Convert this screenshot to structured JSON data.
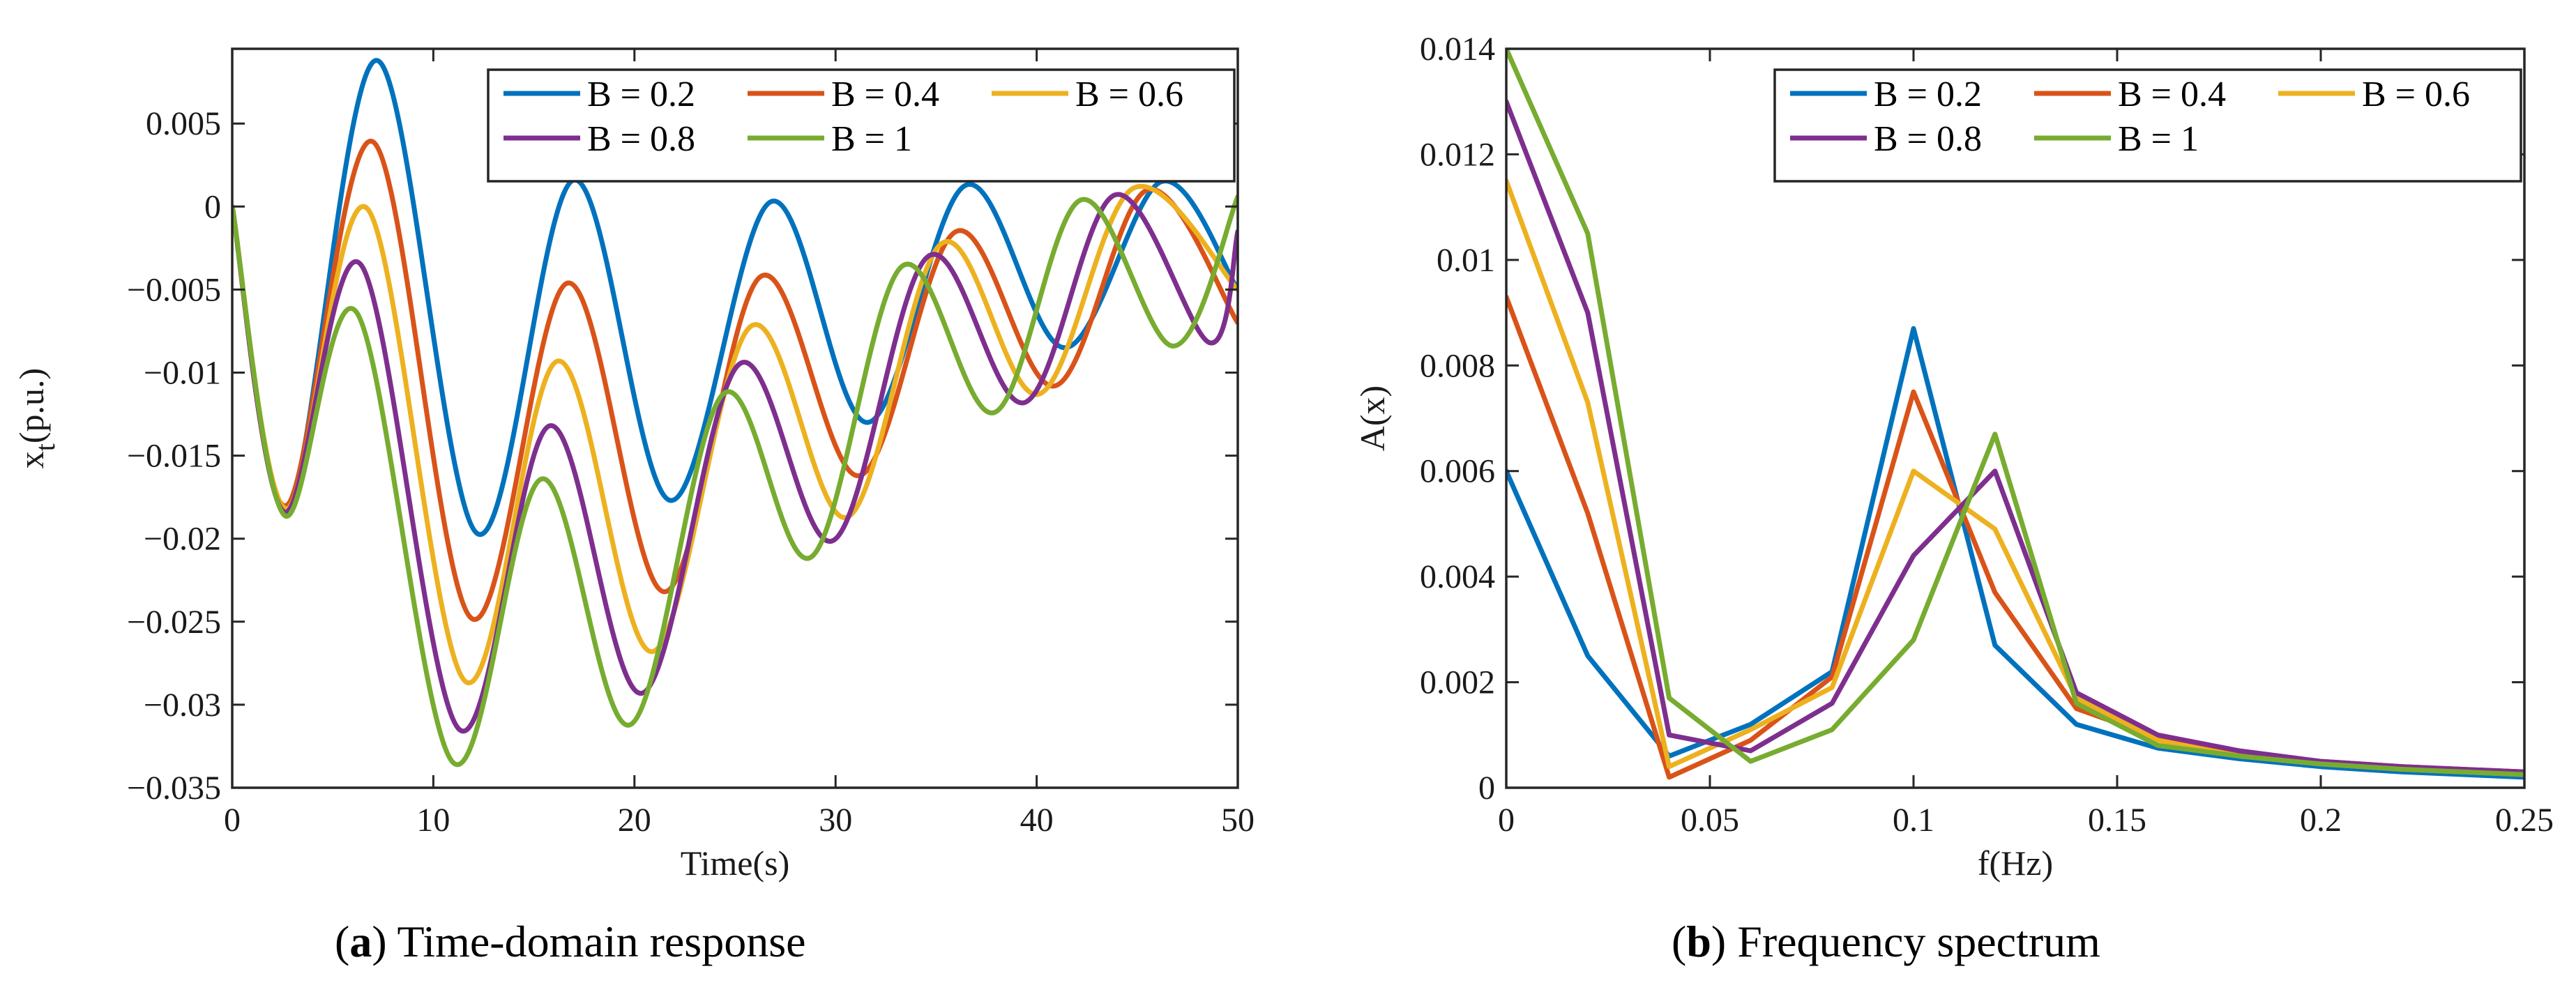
{
  "chart_data": [
    {
      "id": "a",
      "type": "line",
      "caption_letter": "a",
      "caption_text": ") Time-domain response",
      "xlabel": "Time(s)",
      "ylabel_main": "x",
      "ylabel_sub": "t",
      "ylabel_unit": "(p.u.)",
      "xlim": [
        0,
        50
      ],
      "ylim": [
        -0.035,
        0.0095
      ],
      "xticks": [
        0,
        10,
        20,
        30,
        40,
        50
      ],
      "xtick_labels": [
        "0",
        "10",
        "20",
        "30",
        "40",
        "50"
      ],
      "yticks": [
        -0.035,
        -0.03,
        -0.025,
        -0.02,
        -0.015,
        -0.01,
        -0.005,
        0,
        0.005
      ],
      "ytick_labels": [
        "−0.035",
        "−0.03",
        "−0.025",
        "−0.02",
        "−0.015",
        "−0.01",
        "−0.005",
        "0",
        "0.005"
      ],
      "legend_location": "top-right",
      "series": [
        {
          "name": "B = 0.2",
          "color": "#0072BD",
          "x": [
            0,
            2.8,
            7.2,
            12.2,
            17.0,
            21.8,
            26.8,
            31.6,
            36.5,
            41.4,
            46.2,
            50
          ],
          "y": [
            0,
            -0.018,
            0.0088,
            -0.0197,
            0.0016,
            -0.0177,
            0.0003,
            -0.013,
            0.0013,
            -0.0085,
            0.0015,
            -0.005
          ]
        },
        {
          "name": "B = 0.4",
          "color": "#D95319",
          "x": [
            0,
            2.7,
            7.0,
            11.9,
            16.7,
            21.5,
            26.3,
            31.2,
            36.0,
            40.9,
            45.5,
            50
          ],
          "y": [
            0,
            -0.018,
            0.0039,
            -0.0248,
            -0.0046,
            -0.0232,
            -0.0042,
            -0.0162,
            -0.0015,
            -0.0108,
            0.001,
            -0.007
          ]
        },
        {
          "name": "B = 0.6",
          "color": "#EDB120",
          "x": [
            0,
            2.7,
            6.7,
            11.6,
            16.2,
            20.9,
            25.8,
            30.6,
            35.3,
            40.1,
            44.8,
            50
          ],
          "y": [
            0,
            -0.0182,
            -0.0001,
            -0.0286,
            -0.0093,
            -0.0268,
            -0.0072,
            -0.0187,
            -0.0022,
            -0.0113,
            0.0011,
            -0.005
          ]
        },
        {
          "name": "B = 0.8",
          "color": "#7E2F8E",
          "x": [
            0,
            2.6,
            6.4,
            11.3,
            15.8,
            20.4,
            25.2,
            29.9,
            34.6,
            39.4,
            43.9,
            48.6,
            50
          ],
          "y": [
            0,
            -0.0184,
            -0.0035,
            -0.0315,
            -0.0132,
            -0.0293,
            -0.0095,
            -0.0201,
            -0.003,
            -0.0118,
            0.0007,
            -0.0082,
            -0.0015
          ]
        },
        {
          "name": "B = 1",
          "color": "#77AC30",
          "x": [
            0,
            2.6,
            6.2,
            11.0,
            15.4,
            19.8,
            24.4,
            28.8,
            33.3,
            37.9,
            42.2,
            46.8,
            50
          ],
          "y": [
            0,
            -0.0186,
            -0.0064,
            -0.0335,
            -0.0164,
            -0.0312,
            -0.0113,
            -0.0211,
            -0.0036,
            -0.0124,
            0.0004,
            -0.0084,
            0.0006
          ]
        }
      ]
    },
    {
      "id": "b",
      "type": "line",
      "caption_letter": "b",
      "caption_text": ") Frequency spectrum",
      "xlabel": "f(Hz)",
      "ylabel": "A(x)",
      "xlim": [
        0,
        0.25
      ],
      "ylim": [
        0,
        0.014
      ],
      "xticks": [
        0,
        0.05,
        0.1,
        0.15,
        0.2,
        0.25
      ],
      "xtick_labels": [
        "0",
        "0.05",
        "0.1",
        "0.15",
        "0.2",
        "0.25"
      ],
      "yticks": [
        0,
        0.002,
        0.004,
        0.006,
        0.008,
        0.01,
        0.012,
        0.014
      ],
      "ytick_labels": [
        "0",
        "0.002",
        "0.004",
        "0.006",
        "0.008",
        "0.01",
        "0.012",
        "0.014"
      ],
      "legend_location": "top-right",
      "x": [
        0,
        0.02,
        0.04,
        0.06,
        0.08,
        0.1,
        0.12,
        0.14,
        0.16,
        0.18,
        0.2,
        0.22,
        0.25
      ],
      "series": [
        {
          "name": "B = 0.2",
          "color": "#0072BD",
          "values": [
            0.006,
            0.0025,
            0.0006,
            0.0012,
            0.0022,
            0.0087,
            0.0027,
            0.0012,
            0.00075,
            0.00055,
            0.0004,
            0.0003,
            0.0002
          ]
        },
        {
          "name": "B = 0.4",
          "color": "#D95319",
          "values": [
            0.0093,
            0.0052,
            0.0002,
            0.0009,
            0.0021,
            0.0075,
            0.0037,
            0.0015,
            0.00095,
            0.00065,
            0.0005,
            0.0004,
            0.0003
          ]
        },
        {
          "name": "B = 0.6",
          "color": "#EDB120",
          "values": [
            0.0115,
            0.0073,
            0.0004,
            0.0011,
            0.0019,
            0.006,
            0.0049,
            0.0017,
            0.0009,
            0.0006,
            0.00045,
            0.00035,
            0.00025
          ]
        },
        {
          "name": "B = 0.8",
          "color": "#7E2F8E",
          "values": [
            0.013,
            0.009,
            0.001,
            0.0007,
            0.0016,
            0.0044,
            0.006,
            0.0018,
            0.001,
            0.0007,
            0.0005,
            0.0004,
            0.0003
          ]
        },
        {
          "name": "B = 1",
          "color": "#77AC30",
          "values": [
            0.014,
            0.0105,
            0.0017,
            0.0005,
            0.0011,
            0.0028,
            0.0067,
            0.0016,
            0.0008,
            0.0006,
            0.00045,
            0.00035,
            0.00025
          ]
        }
      ]
    }
  ]
}
